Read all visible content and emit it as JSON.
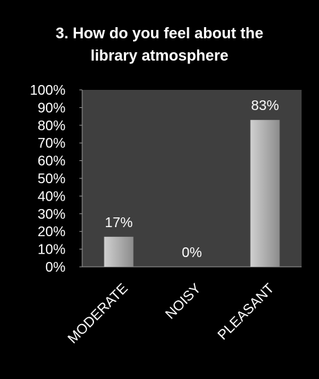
{
  "chart_data": {
    "type": "bar",
    "title_lines": [
      "3. How do you feel about the",
      "library atmosphere"
    ],
    "categories": [
      "MODERATE",
      "NOISY",
      "PLEASANT"
    ],
    "values": [
      17,
      0,
      83
    ],
    "value_labels": [
      "17%",
      "0%",
      "83%"
    ],
    "ylim": [
      0,
      100
    ],
    "yticks": [
      "0%",
      "10%",
      "20%",
      "30%",
      "40%",
      "50%",
      "60%",
      "70%",
      "80%",
      "90%",
      "100%"
    ],
    "grid": false,
    "legend": "none",
    "colors": {
      "background": "#000000",
      "plot_area": "#3f3f3f",
      "bar_light": "#d0d0d0",
      "bar_dark": "#8c8c8c",
      "text": "#ffffff"
    }
  }
}
